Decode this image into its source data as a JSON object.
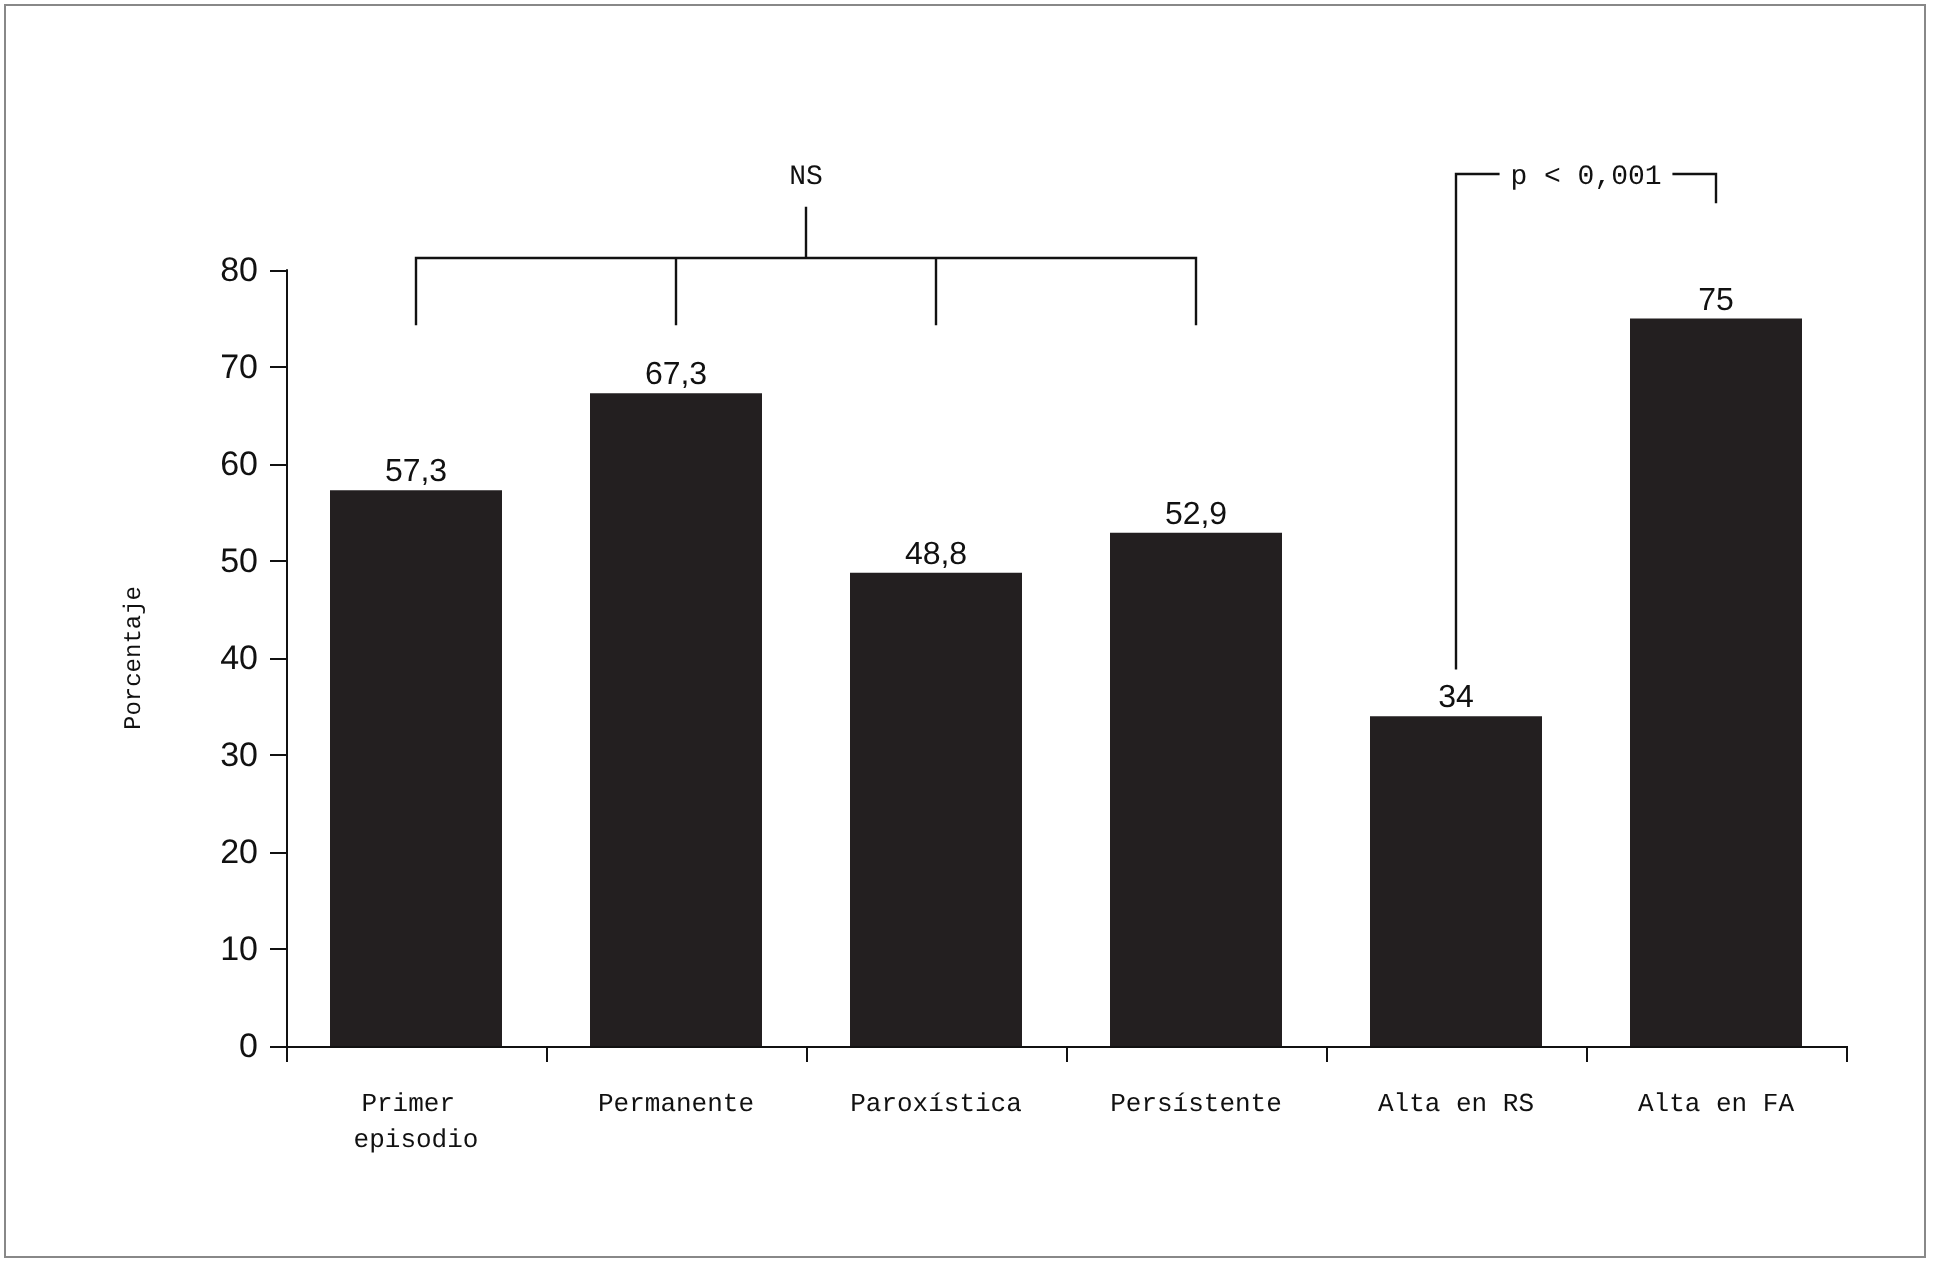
{
  "chart_data": {
    "type": "bar",
    "ylabel": "Porcentaje",
    "categories": [
      "Primer episodio",
      "Permanente",
      "Paroxística",
      "Persístente",
      "Alta en RS",
      "Alta en FA"
    ],
    "values": [
      57.3,
      67.3,
      48.8,
      52.9,
      34,
      75
    ],
    "value_labels": [
      "57,3",
      "67,3",
      "48,8",
      "52,9",
      "34",
      "75"
    ],
    "color": "#231f20",
    "ylim": [
      0,
      80
    ],
    "yticks": [
      0,
      10,
      20,
      30,
      40,
      50,
      60,
      70,
      80
    ],
    "grid": false,
    "annotations": [
      "NS",
      "p < 0,001"
    ]
  }
}
